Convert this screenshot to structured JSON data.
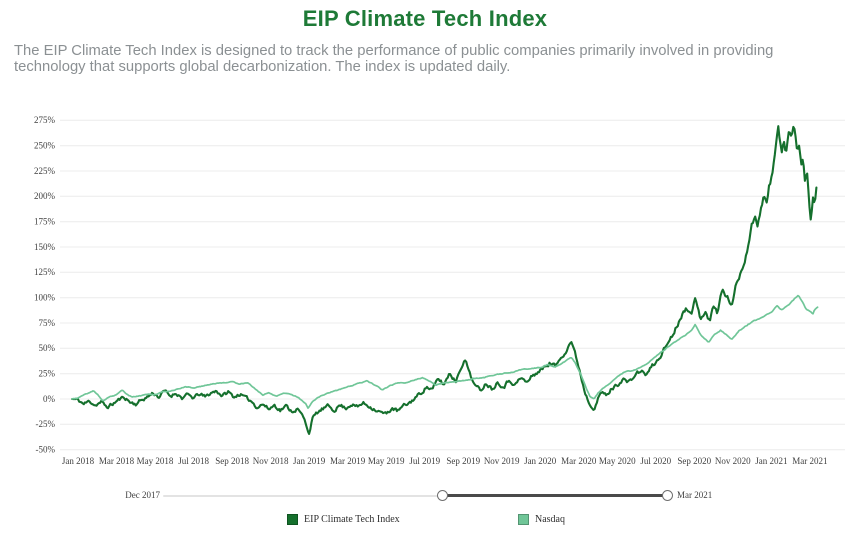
{
  "page": {
    "title": "EIP Climate Tech Index",
    "subtitle": "The EIP Climate Tech Index is designed to track the performance of public companies primarily involved in providing technology that supports global decarbonization. The index is updated daily."
  },
  "range_slider": {
    "start_label": "Dec 2017",
    "end_label": "Mar 2021",
    "selected_range": [
      0.55,
      0.992
    ]
  },
  "legend": {
    "items": [
      {
        "label": "EIP Climate Tech Index",
        "color": "#15702d"
      },
      {
        "label": "Nasdaq",
        "color": "#70c698"
      }
    ]
  },
  "colors": {
    "title_green": "#1e7a37",
    "eip_line": "#15702d",
    "nasdaq_line": "#70c698",
    "gridline": "#ececec",
    "axis_text": "#3f3f3f",
    "subtitle_gray": "#8b9093"
  },
  "chart_data": {
    "type": "line",
    "title": "EIP Climate Tech Index",
    "xlabel": "",
    "ylabel": "",
    "grid": true,
    "legend_position": "bottom",
    "ylim": [
      -50,
      275
    ],
    "y_tick_step": 25,
    "y_tick_labels": [
      "-50%",
      "-25%",
      "0%",
      "25%",
      "50%",
      "75%",
      "100%",
      "125%",
      "150%",
      "175%",
      "200%",
      "225%",
      "250%",
      "275%"
    ],
    "x_tick_labels": [
      "Jan 2018",
      "Mar 2018",
      "May 2018",
      "Jul 2018",
      "Sep 2018",
      "Nov 2018",
      "Jan 2019",
      "Mar 2019",
      "May 2019",
      "Jul 2019",
      "Sep 2019",
      "Nov 2019",
      "Jan 2020",
      "Mar 2020",
      "May 2020",
      "Jul 2020",
      "Sep 2020",
      "Nov 2020",
      "Jan 2021",
      "Mar 2021"
    ],
    "x_tick_months": [
      0,
      2,
      4,
      6,
      8,
      10,
      12,
      14,
      16,
      18,
      20,
      22,
      24,
      26,
      28,
      30,
      32,
      34,
      36,
      38
    ],
    "x_domain_months": [
      -0.3,
      38.35
    ],
    "x_unit": "months since Jan 2018",
    "y_unit": "cumulative return, percent",
    "series": [
      {
        "name": "EIP Climate Tech Index",
        "color": "#15702d",
        "line_width": 2.1,
        "noise_amplitude": 3.1,
        "seed": 11,
        "points_months_pct": [
          [
            -0.3,
            0
          ],
          [
            0.0,
            -1
          ],
          [
            0.3,
            -5
          ],
          [
            0.6,
            -2
          ],
          [
            0.9,
            -6
          ],
          [
            1.2,
            -3
          ],
          [
            1.5,
            -8
          ],
          [
            1.8,
            -5
          ],
          [
            2.1,
            -1
          ],
          [
            2.4,
            2
          ],
          [
            2.7,
            -3
          ],
          [
            3.0,
            -5
          ],
          [
            3.3,
            -1
          ],
          [
            3.6,
            2
          ],
          [
            3.9,
            6
          ],
          [
            4.2,
            2
          ],
          [
            4.5,
            8
          ],
          [
            4.8,
            3
          ],
          [
            5.1,
            6
          ],
          [
            5.4,
            1
          ],
          [
            5.7,
            4
          ],
          [
            6.0,
            1
          ],
          [
            6.3,
            5
          ],
          [
            6.6,
            2
          ],
          [
            6.9,
            6
          ],
          [
            7.2,
            8
          ],
          [
            7.5,
            3
          ],
          [
            7.8,
            7
          ],
          [
            8.1,
            2
          ],
          [
            8.4,
            5
          ],
          [
            8.7,
            1
          ],
          [
            9.0,
            -2
          ],
          [
            9.3,
            -8
          ],
          [
            9.6,
            -5
          ],
          [
            9.9,
            -10
          ],
          [
            10.2,
            -6
          ],
          [
            10.5,
            -11
          ],
          [
            10.8,
            -7
          ],
          [
            11.1,
            -12
          ],
          [
            11.4,
            -10
          ],
          [
            11.7,
            -18
          ],
          [
            11.9,
            -28
          ],
          [
            12.0,
            -34
          ],
          [
            12.15,
            -20
          ],
          [
            12.4,
            -14
          ],
          [
            12.7,
            -10
          ],
          [
            13.0,
            -7
          ],
          [
            13.3,
            -11
          ],
          [
            13.6,
            -6
          ],
          [
            13.9,
            -9
          ],
          [
            14.2,
            -5
          ],
          [
            14.5,
            -8
          ],
          [
            14.8,
            -4
          ],
          [
            15.1,
            -7
          ],
          [
            15.4,
            -10
          ],
          [
            15.7,
            -13
          ],
          [
            16.0,
            -15
          ],
          [
            16.3,
            -9
          ],
          [
            16.6,
            -12
          ],
          [
            16.9,
            -7
          ],
          [
            17.2,
            -4
          ],
          [
            17.5,
            1
          ],
          [
            17.8,
            6
          ],
          [
            18.1,
            12
          ],
          [
            18.4,
            9
          ],
          [
            18.7,
            20
          ],
          [
            19.0,
            14
          ],
          [
            19.3,
            26
          ],
          [
            19.6,
            17
          ],
          [
            19.9,
            33
          ],
          [
            20.1,
            38
          ],
          [
            20.35,
            26
          ],
          [
            20.6,
            13
          ],
          [
            20.9,
            9
          ],
          [
            21.2,
            16
          ],
          [
            21.5,
            10
          ],
          [
            21.8,
            17
          ],
          [
            22.1,
            12
          ],
          [
            22.4,
            19
          ],
          [
            22.7,
            14
          ],
          [
            23.0,
            21
          ],
          [
            23.3,
            16
          ],
          [
            23.6,
            23
          ],
          [
            23.9,
            27
          ],
          [
            24.2,
            31
          ],
          [
            24.5,
            36
          ],
          [
            24.8,
            32
          ],
          [
            25.1,
            42
          ],
          [
            25.4,
            50
          ],
          [
            25.6,
            58
          ],
          [
            25.8,
            45
          ],
          [
            26.0,
            32
          ],
          [
            26.3,
            8
          ],
          [
            26.55,
            -4
          ],
          [
            26.8,
            -9
          ],
          [
            27.0,
            0
          ],
          [
            27.2,
            7
          ],
          [
            27.45,
            3
          ],
          [
            27.7,
            10
          ],
          [
            28.0,
            14
          ],
          [
            28.3,
            20
          ],
          [
            28.6,
            16
          ],
          [
            28.9,
            23
          ],
          [
            29.2,
            28
          ],
          [
            29.5,
            24
          ],
          [
            29.8,
            32
          ],
          [
            30.1,
            38
          ],
          [
            30.4,
            48
          ],
          [
            30.7,
            58
          ],
          [
            31.0,
            68
          ],
          [
            31.3,
            82
          ],
          [
            31.6,
            90
          ],
          [
            31.9,
            88
          ],
          [
            32.05,
            98
          ],
          [
            32.3,
            80
          ],
          [
            32.6,
            88
          ],
          [
            32.8,
            76
          ],
          [
            33.0,
            92
          ],
          [
            33.2,
            86
          ],
          [
            33.45,
            108
          ],
          [
            33.7,
            100
          ],
          [
            33.95,
            94
          ],
          [
            34.2,
            114
          ],
          [
            34.5,
            130
          ],
          [
            34.8,
            152
          ],
          [
            35.0,
            172
          ],
          [
            35.15,
            182
          ],
          [
            35.3,
            172
          ],
          [
            35.45,
            188
          ],
          [
            35.6,
            202
          ],
          [
            35.75,
            192
          ],
          [
            35.9,
            210
          ],
          [
            36.05,
            222
          ],
          [
            36.2,
            242
          ],
          [
            36.35,
            268
          ],
          [
            36.45,
            258
          ],
          [
            36.55,
            244
          ],
          [
            36.65,
            256
          ],
          [
            36.75,
            240
          ],
          [
            36.85,
            254
          ],
          [
            36.95,
            266
          ],
          [
            37.05,
            256
          ],
          [
            37.15,
            268
          ],
          [
            37.25,
            262
          ],
          [
            37.35,
            246
          ],
          [
            37.45,
            254
          ],
          [
            37.55,
            232
          ],
          [
            37.65,
            242
          ],
          [
            37.75,
            216
          ],
          [
            37.85,
            224
          ],
          [
            37.95,
            196
          ],
          [
            38.05,
            178
          ],
          [
            38.15,
            202
          ],
          [
            38.25,
            188
          ],
          [
            38.35,
            212
          ]
        ]
      },
      {
        "name": "Nasdaq",
        "color": "#70c698",
        "line_width": 1.7,
        "noise_amplitude": 0.6,
        "seed": 5,
        "points_months_pct": [
          [
            -0.3,
            0
          ],
          [
            0.0,
            1
          ],
          [
            0.3,
            4
          ],
          [
            0.8,
            8
          ],
          [
            1.0,
            5
          ],
          [
            1.3,
            -2
          ],
          [
            1.6,
            2
          ],
          [
            2.0,
            4
          ],
          [
            2.3,
            9
          ],
          [
            2.5,
            5
          ],
          [
            2.8,
            2
          ],
          [
            3.2,
            3
          ],
          [
            3.6,
            5
          ],
          [
            4.0,
            4
          ],
          [
            4.4,
            7
          ],
          [
            4.8,
            8
          ],
          [
            5.2,
            10
          ],
          [
            5.6,
            12
          ],
          [
            6.0,
            11
          ],
          [
            6.5,
            13
          ],
          [
            7.0,
            15
          ],
          [
            7.5,
            16
          ],
          [
            8.0,
            17
          ],
          [
            8.4,
            15
          ],
          [
            8.8,
            16
          ],
          [
            9.2,
            10
          ],
          [
            9.6,
            4
          ],
          [
            9.9,
            6
          ],
          [
            10.3,
            3
          ],
          [
            10.7,
            6
          ],
          [
            11.0,
            5
          ],
          [
            11.4,
            2
          ],
          [
            11.8,
            -4
          ],
          [
            11.95,
            -9
          ],
          [
            12.2,
            -2
          ],
          [
            12.6,
            3
          ],
          [
            13.0,
            6
          ],
          [
            13.5,
            9
          ],
          [
            14.0,
            12
          ],
          [
            14.5,
            15
          ],
          [
            15.0,
            18
          ],
          [
            15.4,
            14
          ],
          [
            15.8,
            9
          ],
          [
            16.2,
            13
          ],
          [
            16.6,
            16
          ],
          [
            17.0,
            16
          ],
          [
            17.5,
            19
          ],
          [
            17.9,
            21
          ],
          [
            18.3,
            17
          ],
          [
            18.6,
            14
          ],
          [
            19.0,
            16
          ],
          [
            19.5,
            17
          ],
          [
            20.0,
            18
          ],
          [
            20.5,
            20
          ],
          [
            21.0,
            21
          ],
          [
            21.5,
            23
          ],
          [
            22.0,
            25
          ],
          [
            22.5,
            26
          ],
          [
            23.0,
            29
          ],
          [
            23.5,
            30
          ],
          [
            24.0,
            31
          ],
          [
            24.4,
            34
          ],
          [
            24.7,
            32
          ],
          [
            25.0,
            34
          ],
          [
            25.3,
            37
          ],
          [
            25.6,
            41
          ],
          [
            25.8,
            36
          ],
          [
            26.1,
            25
          ],
          [
            26.4,
            10
          ],
          [
            26.6,
            2
          ],
          [
            26.8,
            0
          ],
          [
            27.0,
            6
          ],
          [
            27.3,
            11
          ],
          [
            27.6,
            15
          ],
          [
            28.0,
            22
          ],
          [
            28.4,
            27
          ],
          [
            28.8,
            28
          ],
          [
            29.2,
            31
          ],
          [
            29.6,
            35
          ],
          [
            30.0,
            42
          ],
          [
            30.4,
            48
          ],
          [
            30.8,
            54
          ],
          [
            31.2,
            59
          ],
          [
            31.6,
            64
          ],
          [
            31.9,
            69
          ],
          [
            32.05,
            74
          ],
          [
            32.3,
            64
          ],
          [
            32.5,
            60
          ],
          [
            32.75,
            56
          ],
          [
            33.0,
            63
          ],
          [
            33.37,
            68
          ],
          [
            33.6,
            64
          ],
          [
            33.95,
            59
          ],
          [
            34.3,
            67
          ],
          [
            34.6,
            71
          ],
          [
            34.9,
            75
          ],
          [
            35.2,
            78
          ],
          [
            35.5,
            80
          ],
          [
            35.8,
            84
          ],
          [
            36.0,
            86
          ],
          [
            36.3,
            92
          ],
          [
            36.5,
            88
          ],
          [
            36.8,
            91
          ],
          [
            37.0,
            95
          ],
          [
            37.2,
            99
          ],
          [
            37.4,
            102
          ],
          [
            37.6,
            97
          ],
          [
            37.8,
            89
          ],
          [
            38.0,
            87
          ],
          [
            38.15,
            84
          ],
          [
            38.25,
            88
          ],
          [
            38.4,
            91
          ]
        ]
      }
    ]
  }
}
